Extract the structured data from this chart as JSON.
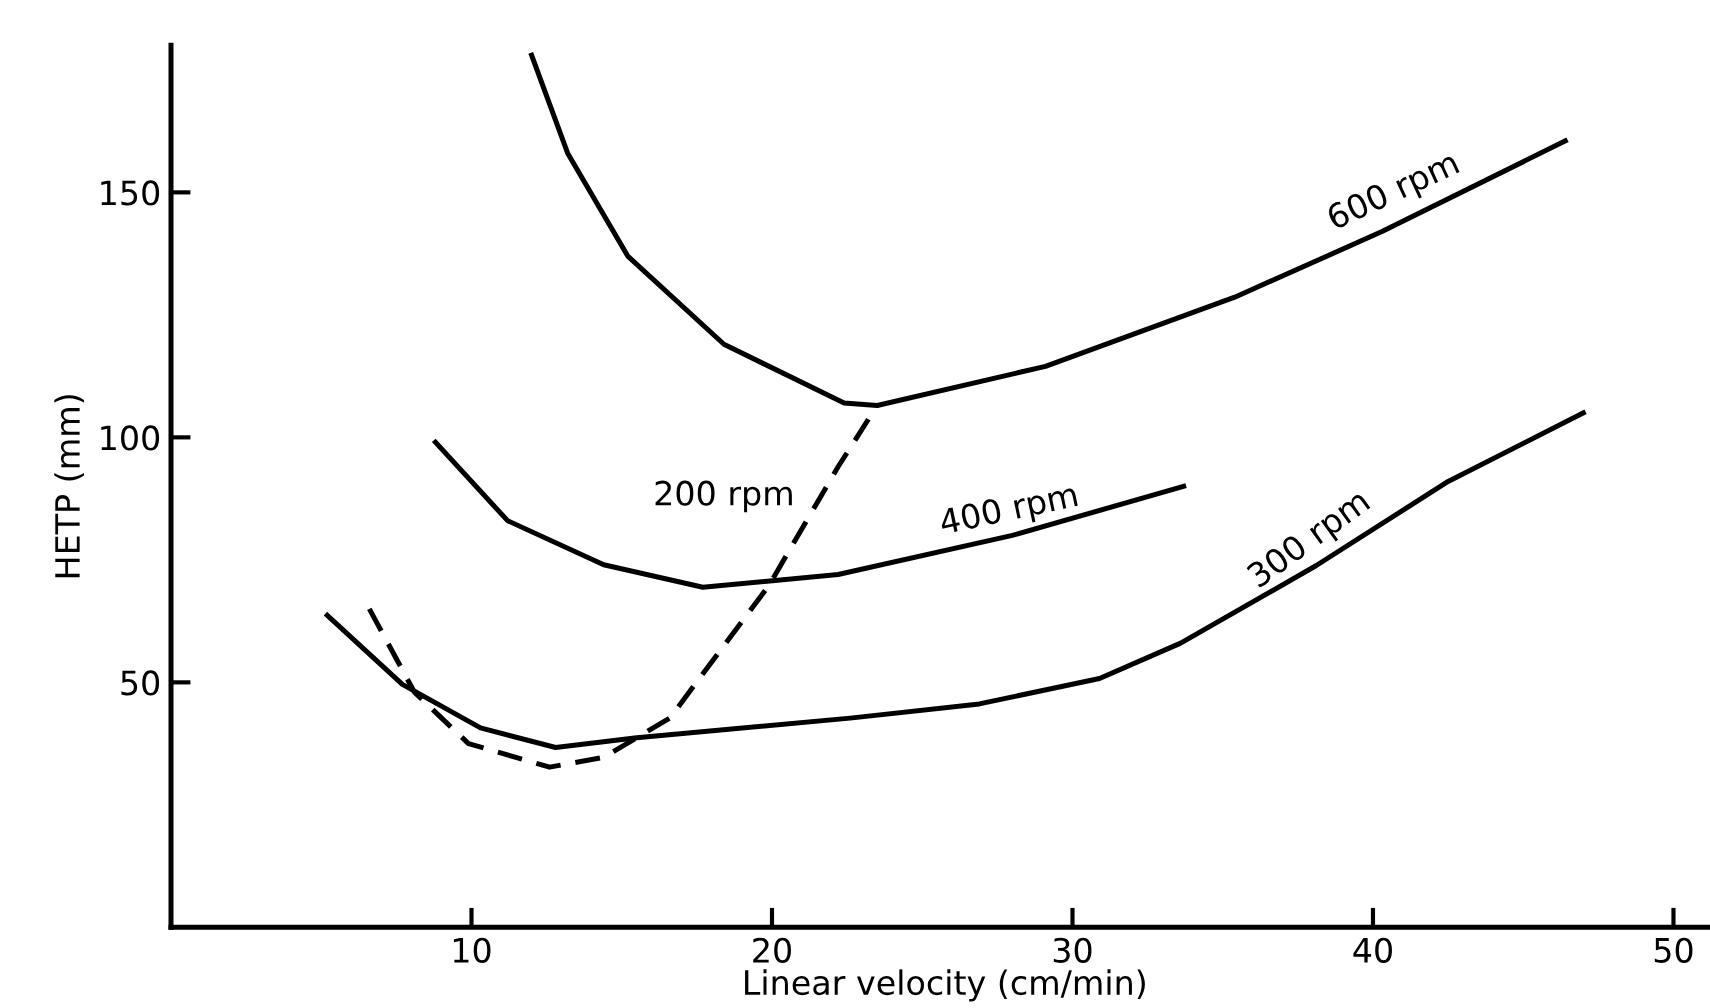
{
  "chart_data": {
    "type": "line",
    "xlabel": "Linear velocity (cm/min)",
    "ylabel": "HETP (mm)",
    "xlim": [
      0,
      51.5
    ],
    "ylim": [
      0,
      180
    ],
    "xticks": [
      10,
      20,
      30,
      40,
      50
    ],
    "yticks": [
      50,
      100,
      150
    ],
    "grid": false,
    "legend": false,
    "marker": "none",
    "series": [
      {
        "name": "600 rpm",
        "color": "#000000",
        "line_style": "solid",
        "x": [
          12.0,
          13.2,
          15.2,
          18.4,
          22.4,
          23.5,
          29.1,
          35.4,
          40.3,
          46.4
        ],
        "values": [
          178,
          158,
          137,
          119,
          107,
          106.5,
          114.5,
          128.6,
          142,
          160.5
        ]
      },
      {
        "name": "400 rpm",
        "color": "#000000",
        "line_style": "solid",
        "x": [
          8.8,
          11.2,
          14.4,
          17.7,
          22.2,
          28.0,
          33.7
        ],
        "values": [
          99,
          83,
          74,
          69.4,
          72,
          80,
          90
        ]
      },
      {
        "name": "300 rpm",
        "color": "#000000",
        "line_style": "solid",
        "x": [
          5.2,
          7.7,
          10.3,
          12.8,
          15.5,
          22.6,
          26.9,
          30.9,
          33.6,
          38.1,
          42.5,
          47.0
        ],
        "values": [
          63.7,
          49.6,
          40.7,
          36.7,
          38.7,
          42.7,
          45.6,
          50.8,
          58,
          73.8,
          91,
          105
        ]
      },
      {
        "name": "200 rpm",
        "color": "#000000",
        "line_style": "dashed",
        "x": [
          6.6,
          8.1,
          9.9,
          12.6,
          14.4,
          16.6,
          19.9,
          22.2,
          23.5
        ],
        "values": [
          65,
          48,
          37.5,
          32.7,
          34.7,
          42.7,
          69.8,
          94,
          106.5
        ]
      }
    ]
  }
}
